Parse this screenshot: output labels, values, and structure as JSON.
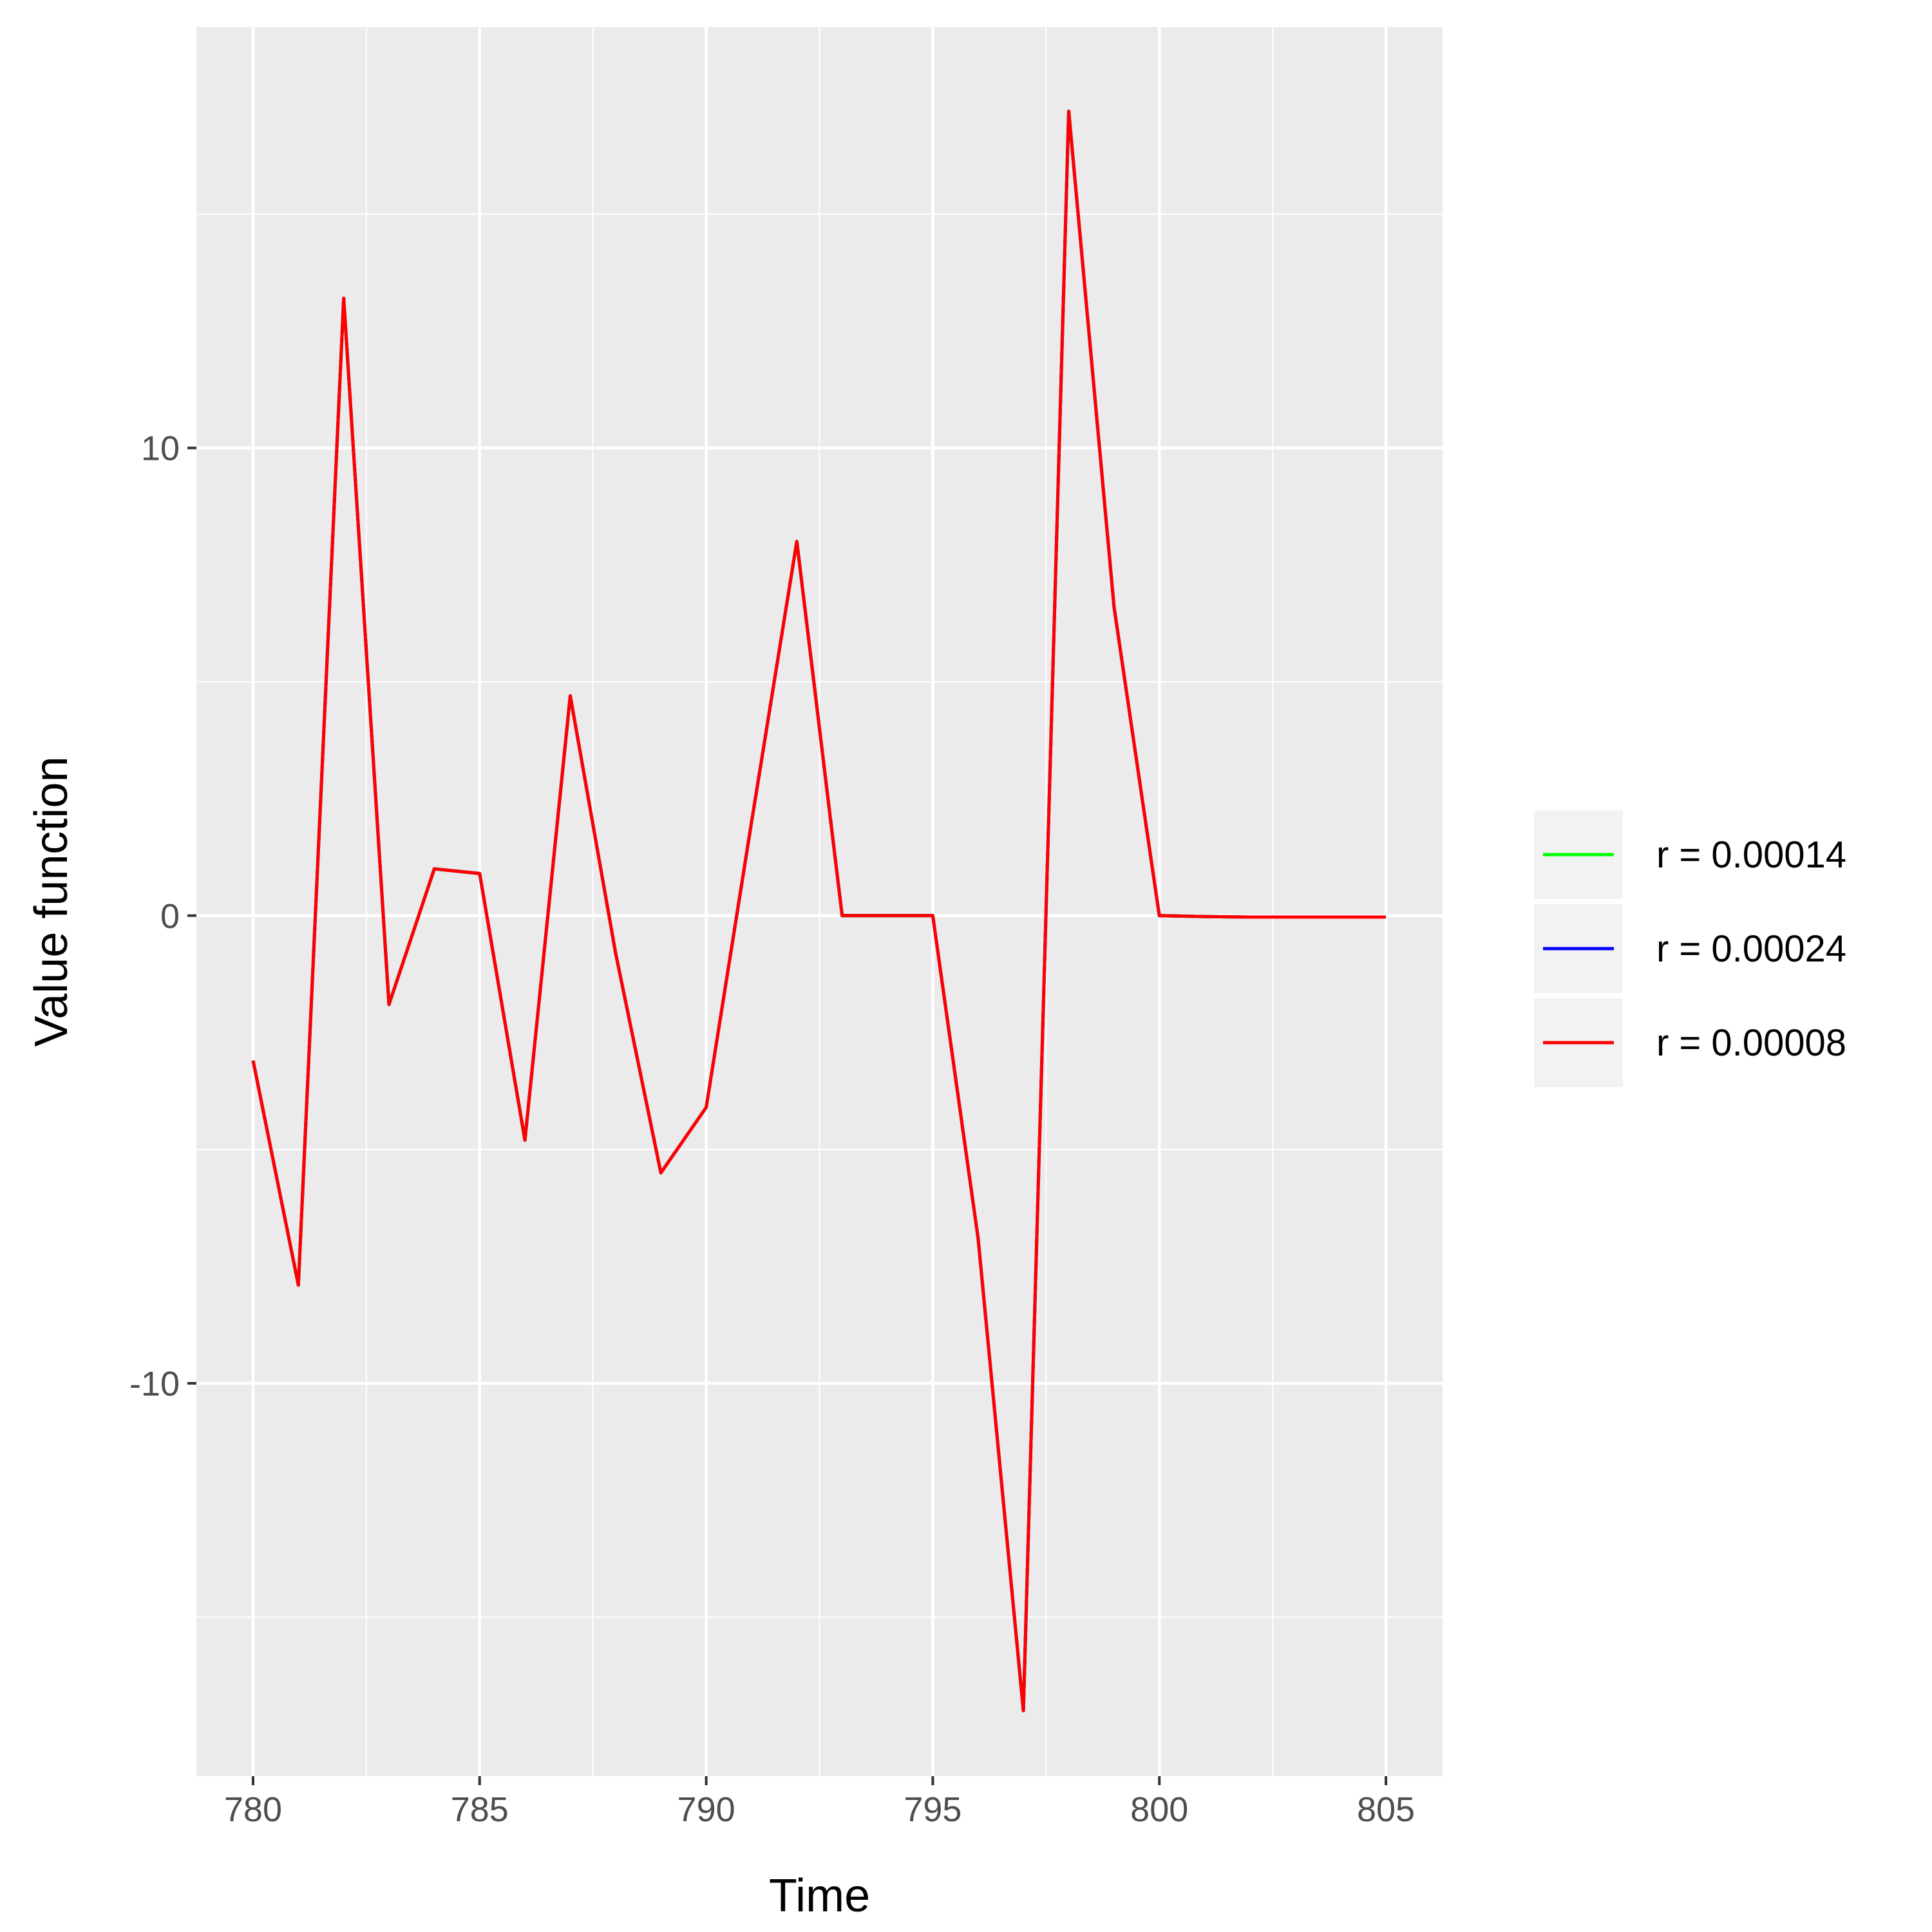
{
  "chart_data": {
    "type": "line",
    "xlabel": "Time",
    "ylabel": "Value function",
    "xlim": [
      778.75,
      806.25
    ],
    "ylim": [
      -18.4,
      19.0
    ],
    "x_ticks": [
      780,
      785,
      790,
      795,
      800,
      805
    ],
    "x_tick_labels": [
      "780",
      "785",
      "790",
      "795",
      "800",
      "805"
    ],
    "y_ticks": [
      -10,
      0,
      10
    ],
    "y_tick_labels": [
      "-10",
      "0",
      "10"
    ],
    "grid": true,
    "legend_position": "right",
    "x": [
      780,
      781,
      782,
      783,
      784,
      785,
      786,
      787,
      788,
      789,
      790,
      791,
      792,
      793,
      794,
      795,
      796,
      797,
      798,
      799,
      800,
      801,
      802,
      803,
      804,
      805
    ],
    "series": [
      {
        "name": "r = 0.00014",
        "color": "#00ff00",
        "values": [
          -3.1,
          -7.9,
          13.2,
          -1.9,
          1.0,
          0.9,
          -4.8,
          4.7,
          -0.8,
          -5.5,
          -4.1,
          2.0,
          8.0,
          0.0,
          0.0,
          0.0,
          -6.9,
          -17.0,
          17.2,
          6.6,
          0.0,
          -0.02,
          -0.03,
          -0.03,
          -0.03,
          -0.03
        ]
      },
      {
        "name": "r = 0.00024",
        "color": "#0000ff",
        "values": [
          -3.1,
          -7.9,
          13.2,
          -1.9,
          1.0,
          0.9,
          -4.8,
          4.7,
          -0.8,
          -5.5,
          -4.1,
          2.0,
          8.0,
          0.0,
          0.0,
          0.0,
          -6.9,
          -17.0,
          17.2,
          6.6,
          0.0,
          -0.02,
          -0.03,
          -0.03,
          -0.03,
          -0.03
        ]
      },
      {
        "name": "r = 0.00008",
        "color": "#ff0000",
        "values": [
          -3.1,
          -7.9,
          13.2,
          -1.9,
          1.0,
          0.9,
          -4.8,
          4.7,
          -0.8,
          -5.5,
          -4.1,
          2.0,
          8.0,
          0.0,
          0.0,
          0.0,
          -6.9,
          -17.0,
          17.2,
          6.6,
          0.0,
          -0.02,
          -0.03,
          -0.03,
          -0.03,
          -0.03
        ]
      }
    ]
  }
}
